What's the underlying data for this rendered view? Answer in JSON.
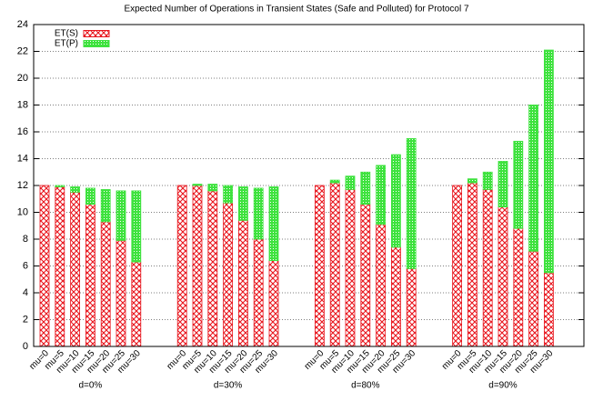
{
  "chart_data": {
    "type": "bar",
    "stacked": true,
    "title": "Expected Number of Operations in Transient States (Safe and Polluted) for Protocol 7",
    "groups": [
      "d=0%",
      "d=30%",
      "d=80%",
      "d=90%"
    ],
    "categories": [
      "mu=0",
      "mu=5",
      "mu=10",
      "mu=15",
      "mu=20",
      "mu=25",
      "mu=30"
    ],
    "series": [
      {
        "name": "ET(S)",
        "color": "#e8141c",
        "values": [
          [
            12,
            11.9,
            11.5,
            10.6,
            9.3,
            7.9,
            6.3
          ],
          [
            12,
            12,
            11.6,
            10.7,
            9.4,
            8,
            6.4
          ],
          [
            12,
            12.2,
            11.7,
            10.6,
            9.1,
            7.4,
            5.8
          ],
          [
            12,
            12.2,
            11.7,
            10.4,
            8.8,
            7.1,
            5.5
          ]
        ]
      },
      {
        "name": "ET(P)",
        "color": "#3ee23e",
        "values": [
          [
            0,
            0.1,
            0.4,
            1.2,
            2.4,
            3.7,
            5.3
          ],
          [
            0,
            0.1,
            0.5,
            1.3,
            2.5,
            3.8,
            5.5
          ],
          [
            0,
            0.2,
            1.0,
            2.4,
            4.4,
            6.9,
            9.7
          ],
          [
            0,
            0.3,
            1.3,
            3.4,
            6.5,
            10.9,
            16.6
          ]
        ]
      }
    ],
    "ylim": [
      0,
      24
    ],
    "yticks": [
      0,
      2,
      4,
      6,
      8,
      10,
      12,
      14,
      16,
      18,
      20,
      22,
      24
    ],
    "grid": true,
    "legend": "top-left"
  }
}
